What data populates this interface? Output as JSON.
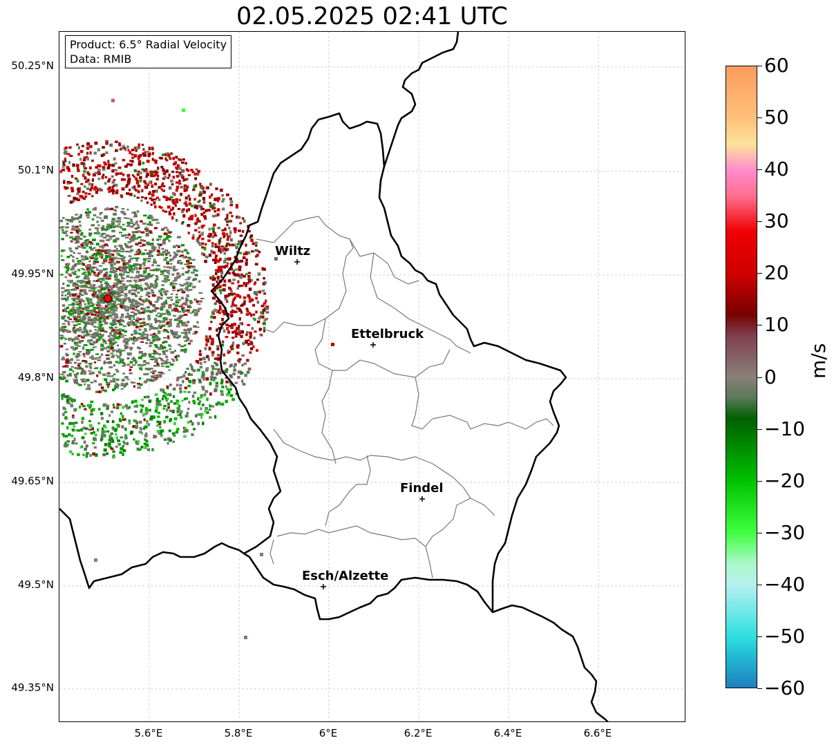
{
  "title": "02.05.2025 02:41 UTC",
  "info_box": {
    "product": "Product: 6.5° Radial Velocity",
    "data": "Data: RMIB"
  },
  "lat_labels": [
    "50.25°N",
    "50.1°N",
    "49.95°N",
    "49.8°N",
    "49.65°N",
    "49.5°N",
    "49.35°N"
  ],
  "lon_labels": [
    "5.6°E",
    "5.8°E",
    "6°E",
    "6.2°E",
    "6.4°E",
    "6.6°E"
  ],
  "cities": [
    {
      "name": "Wiltz"
    },
    {
      "name": "Ettelbruck"
    },
    {
      "name": "Findel"
    },
    {
      "name": "Esch/Alzette"
    }
  ],
  "colorbar": {
    "unit": "m/s",
    "min": -60,
    "max": 60,
    "labels": [
      "60",
      "50",
      "40",
      "30",
      "20",
      "10",
      "0",
      "−10",
      "−20",
      "−30",
      "−40",
      "−50",
      "−60"
    ],
    "stops": [
      {
        "value": 60,
        "color": "#fd9c5c"
      },
      {
        "value": 50,
        "color": "#fec07a"
      },
      {
        "value": 45,
        "color": "#fde39a"
      },
      {
        "value": 40,
        "color": "#ff8ccc"
      },
      {
        "value": 35,
        "color": "#ff6f8f"
      },
      {
        "value": 28,
        "color": "#f00000"
      },
      {
        "value": 20,
        "color": "#d00000"
      },
      {
        "value": 12,
        "color": "#780000"
      },
      {
        "value": 8,
        "color": "#804050"
      },
      {
        "value": 0,
        "color": "#8a8078"
      },
      {
        "value": -4,
        "color": "#5a7a5a"
      },
      {
        "value": -8,
        "color": "#006000"
      },
      {
        "value": -20,
        "color": "#00c000"
      },
      {
        "value": -30,
        "color": "#40ff40"
      },
      {
        "value": -36,
        "color": "#a8f8c8"
      },
      {
        "value": -40,
        "color": "#b8f0f0"
      },
      {
        "value": -50,
        "color": "#30e0e0"
      },
      {
        "value": -55,
        "color": "#20b0d0"
      },
      {
        "value": -60,
        "color": "#2080c0"
      }
    ]
  },
  "radar_site": {
    "color": "#ff0000"
  }
}
